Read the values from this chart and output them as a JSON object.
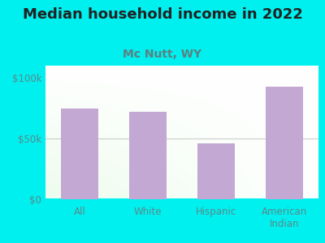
{
  "title": "Median household income in 2022",
  "subtitle": "Mc Nutt, WY",
  "categories": [
    "All",
    "White",
    "Hispanic",
    "American\nIndian"
  ],
  "values": [
    75000,
    72000,
    46000,
    93000
  ],
  "bar_color": "#c4a8d4",
  "background_outer": "#00EFEF",
  "ylim": [
    0,
    110000
  ],
  "yticks": [
    0,
    50000,
    100000
  ],
  "ytick_labels": [
    "$0",
    "$50k",
    "$100k"
  ],
  "title_fontsize": 13,
  "subtitle_fontsize": 10,
  "tick_color": "#5a8a8a",
  "title_color": "#222222",
  "subtitle_color": "#5a8080"
}
